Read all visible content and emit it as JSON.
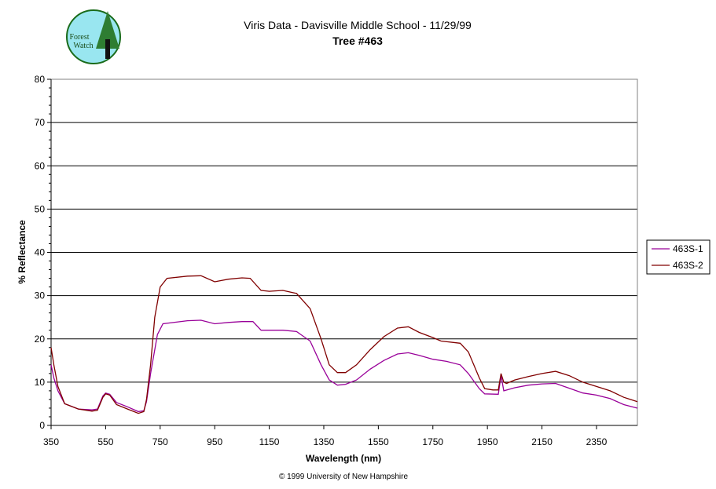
{
  "logo": {
    "text": "Forest Watch"
  },
  "chart_data": {
    "type": "line",
    "title": "Viris Data - Davisville Middle School - 11/29/99",
    "subtitle": "Tree #463",
    "xlabel": "Wavelength (nm)",
    "ylabel": "% Reflectance",
    "xlim": [
      350,
      2500
    ],
    "ylim": [
      0,
      80
    ],
    "xticks": [
      350,
      550,
      750,
      950,
      1150,
      1350,
      1550,
      1750,
      1950,
      2150,
      2350
    ],
    "yticks": [
      0,
      10,
      20,
      30,
      40,
      50,
      60,
      70,
      80
    ],
    "grid": "horizontal",
    "legend_position": "right",
    "series": [
      {
        "name": "463S-1",
        "color": "#990099",
        "points": [
          [
            350,
            14
          ],
          [
            360,
            11
          ],
          [
            375,
            8
          ],
          [
            400,
            5
          ],
          [
            450,
            3.8
          ],
          [
            500,
            3.6
          ],
          [
            520,
            3.8
          ],
          [
            540,
            6.8
          ],
          [
            550,
            7.5
          ],
          [
            565,
            7.2
          ],
          [
            590,
            5.3
          ],
          [
            630,
            4.3
          ],
          [
            670,
            3.2
          ],
          [
            690,
            3.4
          ],
          [
            700,
            5.5
          ],
          [
            715,
            12
          ],
          [
            740,
            21
          ],
          [
            760,
            23.5
          ],
          [
            850,
            24.2
          ],
          [
            900,
            24.3
          ],
          [
            950,
            23.5
          ],
          [
            1000,
            23.8
          ],
          [
            1050,
            24
          ],
          [
            1090,
            24
          ],
          [
            1120,
            22
          ],
          [
            1150,
            22
          ],
          [
            1200,
            22
          ],
          [
            1250,
            21.7
          ],
          [
            1300,
            19.5
          ],
          [
            1340,
            14
          ],
          [
            1370,
            10.5
          ],
          [
            1400,
            9.3
          ],
          [
            1430,
            9.5
          ],
          [
            1470,
            10.5
          ],
          [
            1520,
            13
          ],
          [
            1570,
            15
          ],
          [
            1620,
            16.5
          ],
          [
            1660,
            16.8
          ],
          [
            1700,
            16.2
          ],
          [
            1750,
            15.3
          ],
          [
            1800,
            14.8
          ],
          [
            1850,
            14
          ],
          [
            1880,
            12
          ],
          [
            1920,
            8.5
          ],
          [
            1940,
            7.3
          ],
          [
            1990,
            7.2
          ],
          [
            2000,
            11.5
          ],
          [
            2010,
            8
          ],
          [
            2050,
            8.7
          ],
          [
            2100,
            9.3
          ],
          [
            2150,
            9.6
          ],
          [
            2200,
            9.7
          ],
          [
            2250,
            8.6
          ],
          [
            2300,
            7.5
          ],
          [
            2350,
            7
          ],
          [
            2400,
            6.2
          ],
          [
            2450,
            4.8
          ],
          [
            2500,
            4
          ]
        ]
      },
      {
        "name": "463S-2",
        "color": "#800000",
        "points": [
          [
            350,
            18
          ],
          [
            360,
            14
          ],
          [
            375,
            9
          ],
          [
            400,
            5
          ],
          [
            450,
            3.8
          ],
          [
            500,
            3.3
          ],
          [
            520,
            3.5
          ],
          [
            540,
            6.5
          ],
          [
            550,
            7.3
          ],
          [
            565,
            7
          ],
          [
            590,
            4.8
          ],
          [
            630,
            3.8
          ],
          [
            670,
            2.8
          ],
          [
            690,
            3.2
          ],
          [
            700,
            6
          ],
          [
            715,
            14
          ],
          [
            730,
            25
          ],
          [
            750,
            32
          ],
          [
            775,
            34
          ],
          [
            850,
            34.5
          ],
          [
            900,
            34.6
          ],
          [
            950,
            33.2
          ],
          [
            1000,
            33.8
          ],
          [
            1050,
            34.1
          ],
          [
            1080,
            34
          ],
          [
            1120,
            31.2
          ],
          [
            1150,
            31
          ],
          [
            1200,
            31.2
          ],
          [
            1250,
            30.5
          ],
          [
            1300,
            27
          ],
          [
            1340,
            20
          ],
          [
            1370,
            14
          ],
          [
            1400,
            12.2
          ],
          [
            1430,
            12.2
          ],
          [
            1470,
            14
          ],
          [
            1520,
            17.5
          ],
          [
            1570,
            20.5
          ],
          [
            1620,
            22.5
          ],
          [
            1660,
            22.8
          ],
          [
            1700,
            21.5
          ],
          [
            1750,
            20.3
          ],
          [
            1780,
            19.5
          ],
          [
            1850,
            19
          ],
          [
            1880,
            17
          ],
          [
            1920,
            11
          ],
          [
            1940,
            8.5
          ],
          [
            1970,
            8.2
          ],
          [
            1990,
            8.2
          ],
          [
            2000,
            12
          ],
          [
            2010,
            10
          ],
          [
            2020,
            9.7
          ],
          [
            2050,
            10.5
          ],
          [
            2100,
            11.3
          ],
          [
            2150,
            12
          ],
          [
            2200,
            12.5
          ],
          [
            2250,
            11.5
          ],
          [
            2300,
            10
          ],
          [
            2350,
            9
          ],
          [
            2400,
            8
          ],
          [
            2450,
            6.5
          ],
          [
            2500,
            5.5
          ]
        ]
      }
    ]
  },
  "footer": {
    "copyright": "© 1999 University of New Hampshire"
  }
}
